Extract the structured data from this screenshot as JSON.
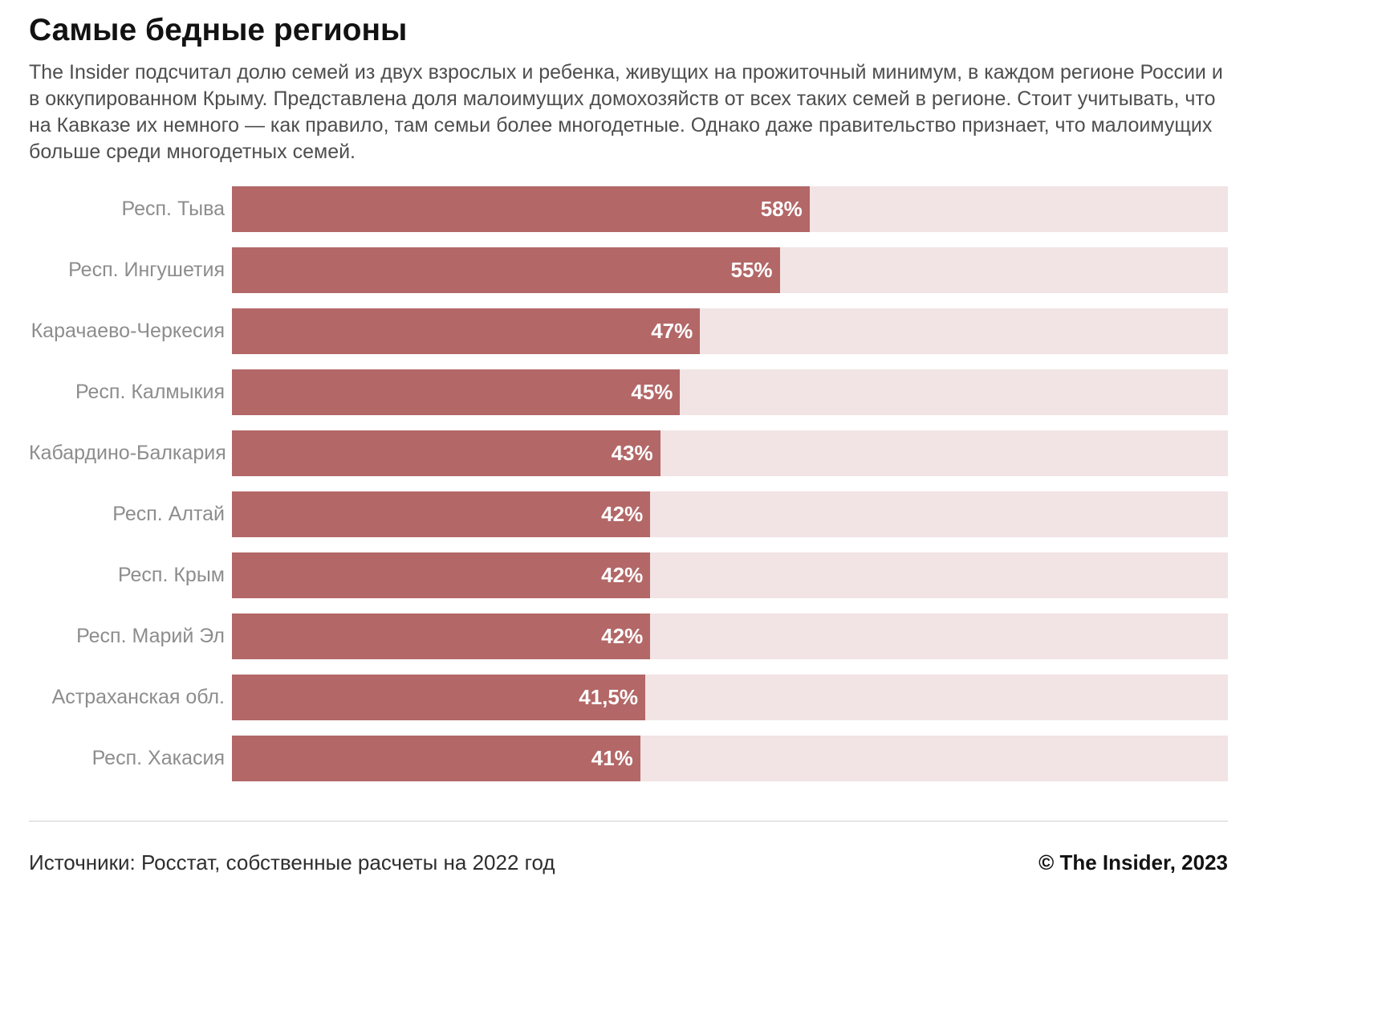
{
  "title": "Самые бедные регионы",
  "subtitle": "The Insider подсчитал долю семей из двух взрослых и ребенка, живущих на прожиточный минимум, в каждом регионе России и в оккупированном Крыму. Представлена доля малоимущих домохозяйств от всех таких семей в регионе. Стоит учитывать, что на Кавказе их немного — как правило, там семьи более многодетные. Однако даже правительство признает, что малоимущих больше среди многодетных семей.",
  "footer": {
    "source": "Источники: Росстат, собственные расчеты на 2022 год",
    "credit": "© The Insider, 2023"
  },
  "colors": {
    "bar_fill": "#b36767",
    "bar_track": "#f2e3e4",
    "label": "#8d8d8d",
    "value_text": "#ffffff"
  },
  "chart_data": {
    "type": "bar",
    "orientation": "horizontal",
    "title": "Самые бедные регионы",
    "xlabel": "",
    "ylabel": "",
    "xlim": [
      0,
      100
    ],
    "grid": false,
    "legend": false,
    "categories": [
      "Респ. Тыва",
      "Респ. Ингушетия",
      "Карачаево-Черкесия",
      "Респ. Калмыкия",
      "Кабардино-Балкария",
      "Респ. Алтай",
      "Респ. Крым",
      "Респ. Марий Эл",
      "Астраханская обл.",
      "Респ. Хакасия"
    ],
    "values": [
      58,
      55,
      47,
      45,
      43,
      42,
      42,
      42,
      41.5,
      41
    ],
    "value_labels": [
      "58%",
      "55%",
      "47%",
      "45%",
      "43%",
      "42%",
      "42%",
      "42%",
      "41,5%",
      "41%"
    ]
  }
}
